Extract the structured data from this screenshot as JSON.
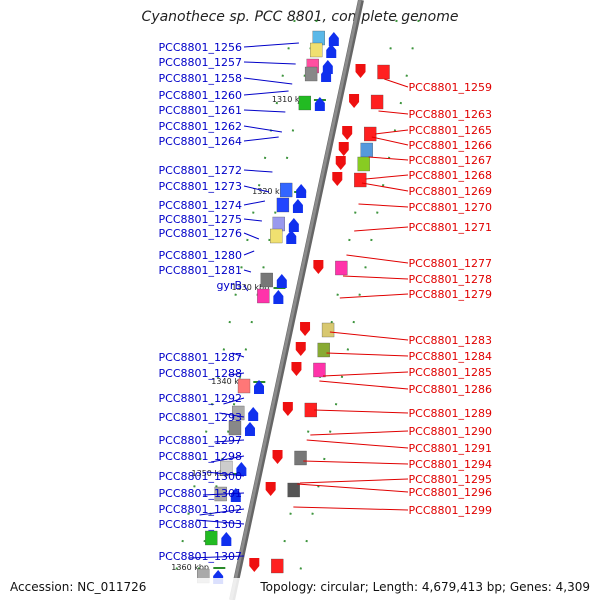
{
  "title": "Cyanothece sp. PCC 8801, complete genome",
  "footer": {
    "accession": "Accession: NC_011726",
    "summary": "Topology: circular; Length: 4,679,413 bp; Genes: 4,309"
  },
  "colors": {
    "left_labels": "#0000c8",
    "right_labels": "#e00000",
    "backbone": "#8c8c8c",
    "tick": "#2a8a2a"
  },
  "kbp_marks": [
    "1310 kbp",
    "1320 kbp",
    "1330 kbp",
    "1340 kbp",
    "1350 kbp",
    "1360 kbp"
  ],
  "left_labels": [
    "PCC8801_1256",
    "PCC8801_1257",
    "PCC8801_1258",
    "PCC8801_1260",
    "PCC8801_1261",
    "PCC8801_1262",
    "PCC8801_1264",
    "PCC8801_1272",
    "PCC8801_1273",
    "PCC8801_1274",
    "PCC8801_1275",
    "PCC8801_1276",
    "PCC8801_1280",
    "PCC8801_1281",
    "gyrB",
    "PCC8801_1287",
    "PCC8801_1288",
    "PCC8801_1292",
    "PCC8801_1293",
    "PCC8801_1297",
    "PCC8801_1298",
    "PCC8801_1300",
    "PCC8801_1301",
    "PCC8801_1302",
    "PCC8801_1303",
    "PCC8801_1307"
  ],
  "right_labels": [
    "PCC8801_1259",
    "PCC8801_1263",
    "PCC8801_1265",
    "PCC8801_1266",
    "PCC8801_1267",
    "PCC8801_1268",
    "PCC8801_1269",
    "PCC8801_1270",
    "PCC8801_1271",
    "PCC8801_1277",
    "PCC8801_1278",
    "PCC8801_1279",
    "PCC8801_1283",
    "PCC8801_1284",
    "PCC8801_1285",
    "PCC8801_1286",
    "PCC8801_1289",
    "PCC8801_1290",
    "PCC8801_1291",
    "PCC8801_1294",
    "PCC8801_1295",
    "PCC8801_1296",
    "PCC8801_1299"
  ]
}
